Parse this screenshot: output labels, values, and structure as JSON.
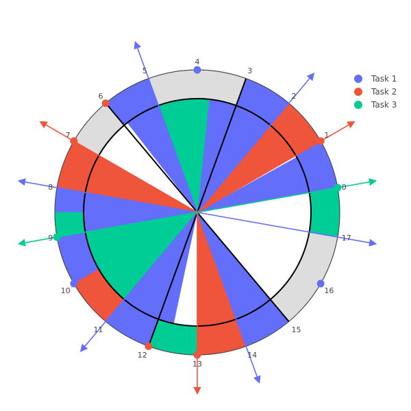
{
  "chart_data": {
    "type": "polar-task-schedule",
    "sectors": [
      "0",
      "1",
      "2",
      "3",
      "4",
      "5",
      "6",
      "7",
      "8",
      "9",
      "10",
      "11",
      "12",
      "13",
      "14",
      "15",
      "16",
      "17"
    ],
    "radial_range": [
      0,
      1
    ],
    "outer_ring_radius": 0.75,
    "inner_circle_radius": 1.0,
    "angle_offset_deg": 10,
    "legend_position": "top-right",
    "background_color": "#ffffff",
    "idle_ring_color": "#dddddd",
    "series": [
      {
        "name": "Task 1",
        "color": "#636efa",
        "inner_segments": [
          [
            0,
            0.95
          ],
          [
            2,
            3.7
          ],
          [
            5,
            5.9
          ],
          [
            8,
            10
          ],
          [
            11,
            12.4
          ],
          [
            14,
            15
          ]
        ],
        "outer_segments": [
          [
            0,
            1
          ],
          [
            2,
            3
          ],
          [
            5,
            6
          ],
          [
            8,
            8.5
          ],
          [
            9,
            10
          ],
          [
            11,
            12
          ],
          [
            14,
            15
          ]
        ],
        "points": [
          1,
          4,
          7,
          10,
          13,
          16
        ],
        "arrows": [
          2,
          5,
          8,
          11,
          14,
          17
        ]
      },
      {
        "name": "Task 2",
        "color": "#ef553b",
        "inner_segments": [
          [
            1,
            2
          ],
          [
            7,
            8
          ],
          [
            10,
            11
          ],
          [
            13,
            14
          ]
        ],
        "outer_segments": [
          [
            1,
            2
          ],
          [
            7,
            8
          ],
          [
            10,
            11
          ],
          [
            13,
            14
          ]
        ],
        "points": [
          1,
          6,
          7,
          12,
          13
        ],
        "arrows": [
          1,
          7,
          13
        ]
      },
      {
        "name": "Task 3",
        "color": "#00cc96",
        "inner_segments": [
          [
            3.7,
            5
          ],
          [
            9,
            11
          ]
        ],
        "outer_segments": [
          [
            17,
            18
          ],
          [
            8.5,
            9
          ],
          [
            12,
            13
          ]
        ],
        "points": [
          0,
          9
        ],
        "arrows": [
          0,
          9
        ]
      }
    ]
  }
}
